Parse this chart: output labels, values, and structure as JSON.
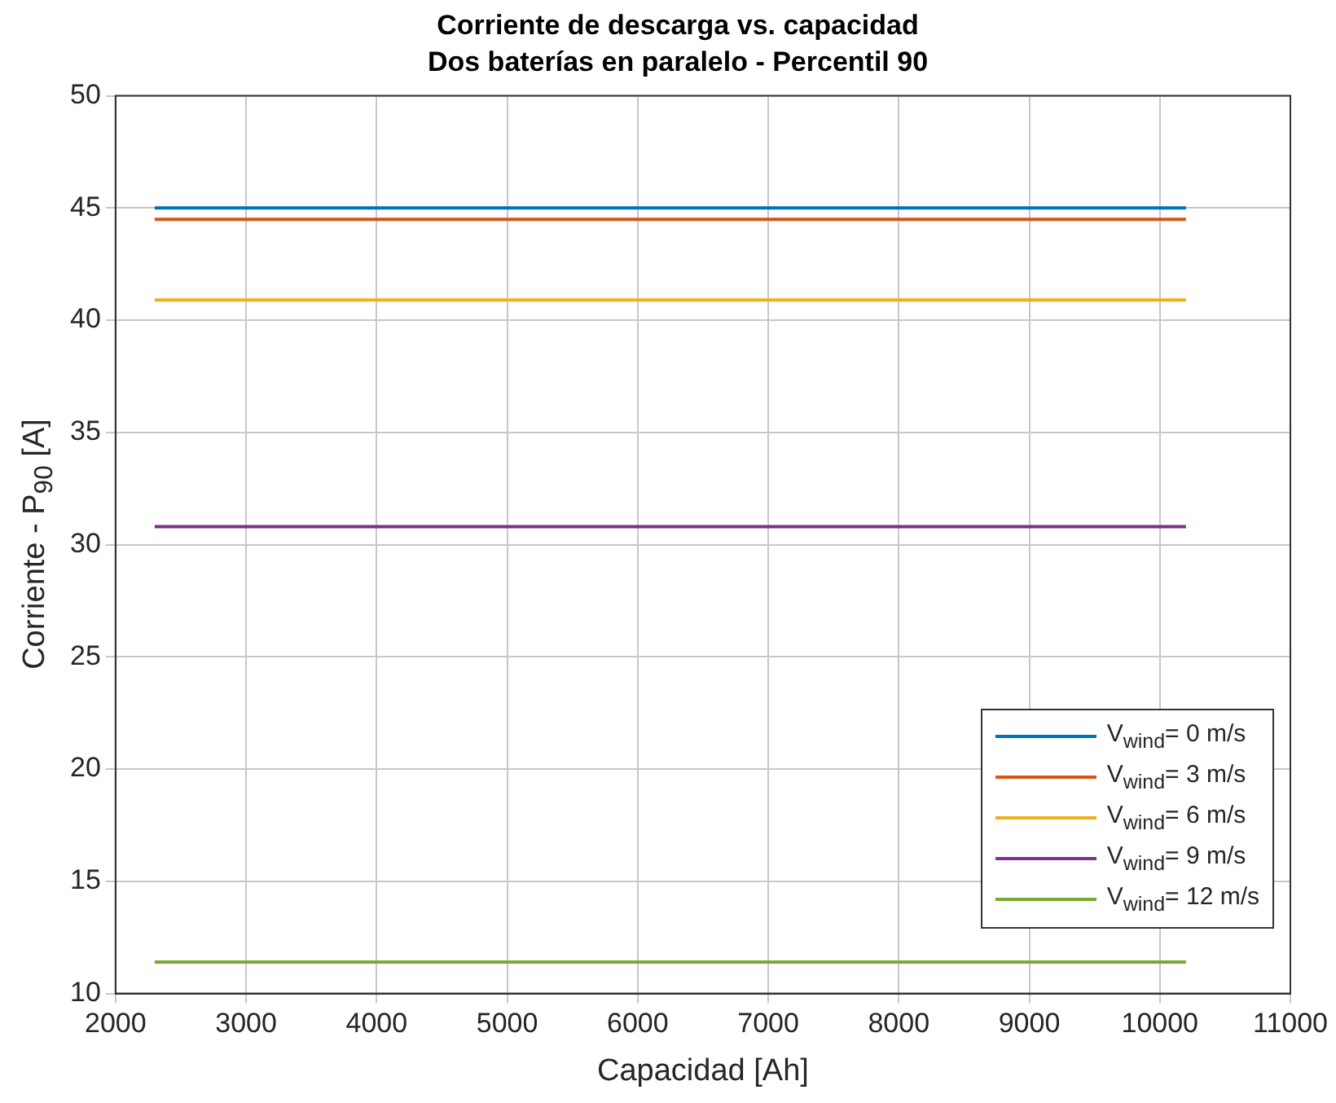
{
  "chart_data": {
    "type": "line",
    "title": "Corriente de descarga vs. capacidad",
    "subtitle": "Dos baterías en paralelo - Percentil 90",
    "xlabel": "Capacidad [Ah]",
    "ylabel": "Corriente - P$_{90}$ [A]",
    "x": [
      2300,
      10200
    ],
    "series": [
      {
        "name": "V$_{wind}$= 0 m/s",
        "color": "#0072bd",
        "values": [
          45.0,
          45.0
        ]
      },
      {
        "name": "V$_{wind}$= 3 m/s",
        "color": "#d95319",
        "values": [
          44.5,
          44.5
        ]
      },
      {
        "name": "V$_{wind}$= 6 m/s",
        "color": "#edb120",
        "values": [
          40.9,
          40.9
        ]
      },
      {
        "name": "V$_{wind}$= 9 m/s",
        "color": "#7e2f8e",
        "values": [
          30.8,
          30.8
        ]
      },
      {
        "name": "V$_{wind}$= 12 m/s",
        "color": "#77ac30",
        "values": [
          11.4,
          11.4
        ]
      }
    ],
    "xlim": [
      2000,
      11000
    ],
    "xticks": [
      2000,
      3000,
      4000,
      5000,
      6000,
      7000,
      8000,
      9000,
      10000,
      11000
    ],
    "ylim": [
      10,
      50
    ],
    "yticks": [
      10,
      15,
      20,
      25,
      30,
      35,
      40,
      45,
      50
    ],
    "grid": true,
    "legend": "bottom right",
    "marker": "none",
    "line_style": "solid"
  }
}
